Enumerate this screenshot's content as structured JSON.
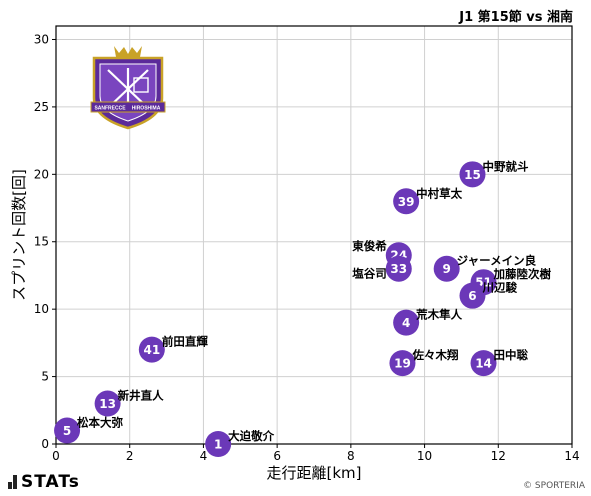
{
  "header": {
    "title": "J1 第15節 vs 湘南"
  },
  "footer": {
    "brand": "STATs",
    "copyright": "© SPORTERIA"
  },
  "crest": {
    "lines": [
      "SANFRECCE",
      "HIROSHIMA"
    ]
  },
  "colors": {
    "marker": "#6b38b8",
    "crest_purple": "#5b2a9a",
    "crest_gold": "#c9a227"
  },
  "chart_data": {
    "type": "scatter",
    "xlabel": "走行距離[km]",
    "ylabel": "スプリント回数[回]",
    "xlim": [
      0,
      14
    ],
    "ylim": [
      0,
      31
    ],
    "xticks": [
      0,
      2,
      4,
      6,
      8,
      10,
      12,
      14
    ],
    "yticks": [
      0,
      5,
      10,
      15,
      20,
      25,
      30
    ],
    "grid": true,
    "points": [
      {
        "number": "15",
        "name": "中野就斗",
        "x": 11.3,
        "y": 20
      },
      {
        "number": "39",
        "name": "中村草太",
        "x": 9.5,
        "y": 18
      },
      {
        "number": "24",
        "name": "東俊希",
        "x": 9.3,
        "y": 14
      },
      {
        "number": "33",
        "name": "塩谷司",
        "x": 9.3,
        "y": 13
      },
      {
        "number": "9",
        "name": "ジャーメイン良",
        "x": 10.6,
        "y": 13
      },
      {
        "number": "51",
        "name": "加藤陸次樹",
        "x": 11.6,
        "y": 12
      },
      {
        "number": "6",
        "name": "川辺駿",
        "x": 11.3,
        "y": 11
      },
      {
        "number": "4",
        "name": "荒木隼人",
        "x": 9.5,
        "y": 9
      },
      {
        "number": "19",
        "name": "佐々木翔",
        "x": 9.4,
        "y": 6
      },
      {
        "number": "14",
        "name": "田中聡",
        "x": 11.6,
        "y": 6
      },
      {
        "number": "41",
        "name": "前田直輝",
        "x": 2.6,
        "y": 7
      },
      {
        "number": "13",
        "name": "新井直人",
        "x": 1.4,
        "y": 3
      },
      {
        "number": "5",
        "name": "松本大弥",
        "x": 0.3,
        "y": 1
      },
      {
        "number": "1",
        "name": "大迫敬介",
        "x": 4.4,
        "y": 0
      }
    ]
  }
}
